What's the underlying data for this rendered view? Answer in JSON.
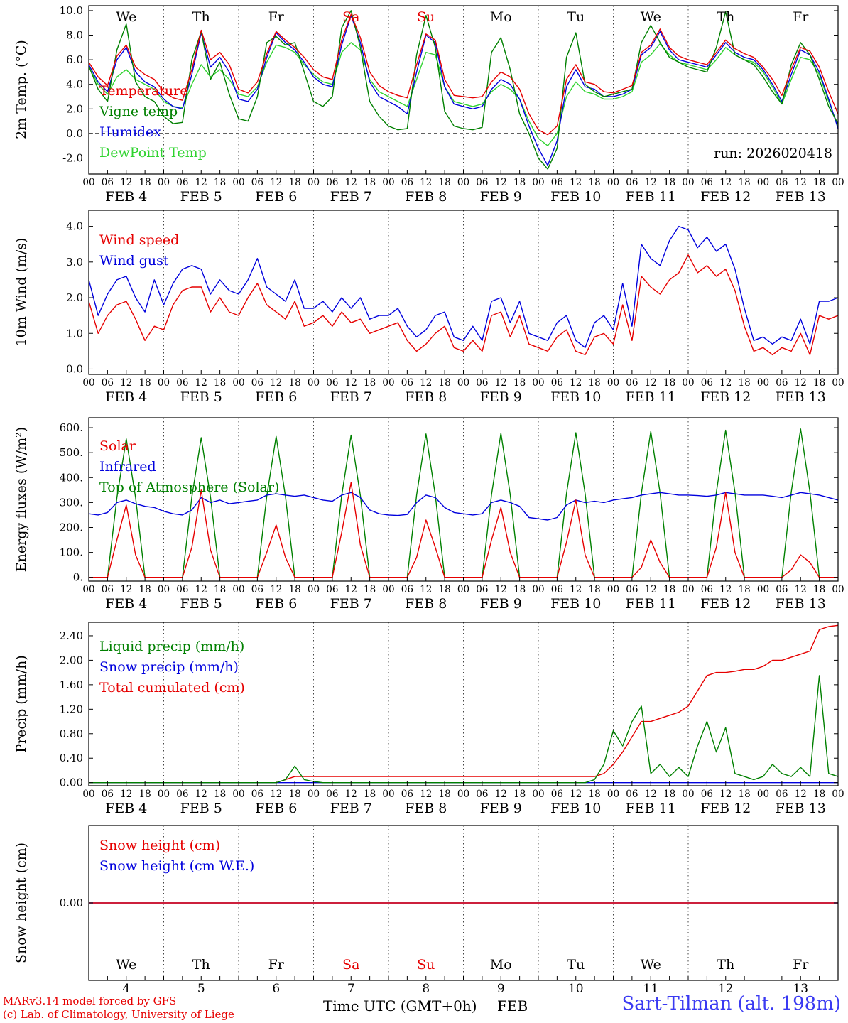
{
  "meta": {
    "run_label": "run: 2026020418"
  },
  "colors": {
    "red": "#e60000",
    "dark_green": "#008000",
    "blue": "#0000dd",
    "light_green": "#2fd32f",
    "weekend_red": "#e60000",
    "station_blue": "#3a3af2",
    "grid": "#444444",
    "axis": "#000000"
  },
  "footer": {
    "credit1": "MARv3.14 model forced by GFS",
    "credit2": "(c) Lab. of Climatology, University of Liege",
    "xlabel": "Time UTC (GMT+0h)",
    "month": "FEB",
    "station": "Sart-Tilman (alt. 198m)"
  },
  "days": {
    "names": [
      "We",
      "Th",
      "Fr",
      "Sa",
      "Su",
      "Mo",
      "Tu",
      "We",
      "Th",
      "Fr"
    ],
    "numbers": [
      "4",
      "5",
      "6",
      "7",
      "8",
      "9",
      "10",
      "11",
      "12",
      "13"
    ],
    "weekend": [
      0,
      0,
      0,
      1,
      1,
      0,
      0,
      0,
      0,
      0
    ]
  },
  "x_axis": {
    "start_hour": 0,
    "end_hour": 240,
    "hour_tick_step": 6,
    "hour_labels": [
      "00",
      "06",
      "12",
      "18"
    ],
    "date_labels": [
      "FEB 4",
      "FEB 5",
      "FEB 6",
      "FEB 7",
      "FEB 8",
      "FEB 9",
      "FEB 10",
      "FEB 11",
      "FEB 12",
      "FEB 13"
    ]
  },
  "chart_data": [
    {
      "id": "temperature",
      "type": "line",
      "ylabel": "2m Temp. (°C)",
      "ylim": [
        -3.3,
        10.4
      ],
      "ytick_values": [
        -2,
        0,
        2,
        4,
        6,
        8,
        10
      ],
      "ytick_labels": [
        "-2.0",
        "0.0",
        "2.0",
        "4.0",
        "6.0",
        "8.0",
        "10.0"
      ],
      "zero_line_dashed": true,
      "step_hours": 3,
      "series": [
        {
          "name": "Temperature",
          "color": "#e60000",
          "values": [
            5.8,
            4.6,
            3.9,
            6.3,
            7.2,
            5.4,
            4.8,
            4.4,
            3.4,
            2.9,
            2.7,
            5.2,
            8.4,
            6.0,
            6.6,
            5.6,
            3.6,
            3.3,
            4.2,
            6.5,
            8.3,
            7.6,
            7.0,
            6.2,
            5.2,
            4.6,
            4.4,
            7.6,
            9.7,
            7.8,
            5.0,
            3.9,
            3.4,
            3.1,
            2.9,
            5.6,
            8.1,
            7.6,
            4.4,
            3.1,
            3.0,
            2.9,
            3.0,
            4.2,
            5.0,
            4.6,
            3.6,
            1.6,
            0.3,
            -0.1,
            0.6,
            4.4,
            5.6,
            4.2,
            4.0,
            3.4,
            3.3,
            3.6,
            3.9,
            6.6,
            7.2,
            8.5,
            7.0,
            6.3,
            6.0,
            5.8,
            5.6,
            6.6,
            7.6,
            6.9,
            6.5,
            6.2,
            5.4,
            4.4,
            3.1,
            5.2,
            7.0,
            6.7,
            5.4,
            3.4,
            1.6
          ]
        },
        {
          "name": "Vigne temp",
          "color": "#008000",
          "values": [
            5.5,
            3.6,
            2.6,
            6.8,
            8.9,
            4.2,
            3.0,
            2.6,
            1.4,
            0.8,
            0.9,
            6.0,
            8.3,
            4.4,
            5.8,
            3.2,
            1.2,
            1.0,
            3.0,
            7.4,
            7.9,
            7.2,
            7.4,
            5.0,
            2.6,
            2.2,
            3.0,
            8.6,
            10.0,
            7.0,
            2.6,
            1.4,
            0.6,
            0.3,
            0.4,
            6.4,
            9.6,
            7.0,
            1.8,
            0.6,
            0.4,
            0.3,
            0.5,
            6.6,
            7.8,
            5.2,
            1.6,
            0.0,
            -2.0,
            -2.9,
            -1.2,
            6.2,
            8.2,
            4.0,
            3.4,
            3.0,
            3.2,
            3.4,
            3.6,
            7.4,
            8.8,
            7.4,
            6.2,
            5.8,
            5.4,
            5.2,
            5.0,
            7.0,
            9.9,
            6.4,
            6.0,
            5.6,
            4.6,
            3.4,
            2.4,
            5.6,
            7.4,
            6.4,
            4.4,
            2.2,
            0.8
          ]
        },
        {
          "name": "Humidex",
          "color": "#0000dd",
          "values": [
            5.6,
            4.2,
            3.4,
            6.0,
            7.0,
            5.0,
            4.2,
            3.8,
            2.8,
            2.2,
            2.0,
            4.8,
            8.2,
            5.4,
            6.2,
            5.0,
            2.8,
            2.6,
            3.6,
            6.2,
            8.2,
            7.4,
            6.8,
            5.8,
            4.6,
            4.0,
            3.8,
            7.2,
            9.6,
            7.4,
            4.2,
            3.0,
            2.6,
            2.2,
            1.6,
            5.0,
            8.0,
            7.4,
            3.8,
            2.4,
            2.2,
            2.0,
            2.2,
            3.6,
            4.4,
            4.0,
            2.8,
            0.6,
            -1.2,
            -2.6,
            -0.6,
            3.8,
            5.2,
            3.8,
            3.6,
            3.0,
            3.0,
            3.2,
            3.6,
            6.4,
            7.0,
            8.3,
            6.8,
            6.0,
            5.8,
            5.6,
            5.4,
            6.4,
            7.4,
            6.6,
            6.2,
            6.0,
            5.2,
            4.0,
            2.6,
            4.8,
            6.8,
            6.4,
            5.0,
            2.8,
            0.4
          ]
        },
        {
          "name": "DewPoint Temp",
          "color": "#2fd32f",
          "values": [
            5.4,
            4.0,
            3.2,
            4.6,
            5.2,
            4.4,
            4.0,
            3.6,
            2.6,
            2.2,
            2.1,
            4.0,
            5.6,
            4.6,
            5.2,
            4.4,
            3.2,
            3.0,
            3.8,
            5.8,
            7.2,
            7.0,
            6.6,
            5.6,
            4.8,
            4.2,
            4.0,
            6.6,
            7.4,
            6.8,
            4.4,
            3.4,
            3.0,
            2.6,
            2.2,
            4.4,
            6.6,
            6.4,
            3.8,
            2.6,
            2.4,
            2.2,
            2.4,
            3.4,
            4.0,
            3.6,
            2.8,
            1.0,
            -0.4,
            -1.0,
            0.0,
            3.0,
            4.2,
            3.4,
            3.2,
            2.8,
            2.8,
            3.0,
            3.4,
            5.8,
            6.4,
            7.3,
            6.4,
            5.8,
            5.6,
            5.4,
            5.2,
            6.0,
            7.0,
            6.4,
            6.0,
            5.8,
            5.0,
            3.8,
            2.4,
            4.4,
            6.2,
            6.0,
            4.8,
            2.6,
            0.6
          ]
        }
      ]
    },
    {
      "id": "wind",
      "type": "line",
      "ylabel": "10m Wind (m/s)",
      "ylim": [
        -0.15,
        4.45
      ],
      "ytick_values": [
        0,
        1,
        2,
        3,
        4
      ],
      "ytick_labels": [
        "0.0",
        "1.0",
        "2.0",
        "3.0",
        "4.0"
      ],
      "step_hours": 3,
      "series": [
        {
          "name": "Wind speed",
          "color": "#e60000",
          "values": [
            1.9,
            1.0,
            1.5,
            1.8,
            1.9,
            1.4,
            0.8,
            1.2,
            1.1,
            1.8,
            2.2,
            2.3,
            2.3,
            1.6,
            2.0,
            1.6,
            1.5,
            2.0,
            2.4,
            1.8,
            1.6,
            1.4,
            1.9,
            1.2,
            1.3,
            1.5,
            1.2,
            1.6,
            1.3,
            1.4,
            1.0,
            1.1,
            1.2,
            1.3,
            0.8,
            0.5,
            0.7,
            1.0,
            1.2,
            0.6,
            0.5,
            0.8,
            0.5,
            1.5,
            1.6,
            0.9,
            1.5,
            0.7,
            0.6,
            0.5,
            0.9,
            1.1,
            0.5,
            0.4,
            0.9,
            1.0,
            0.7,
            1.8,
            0.8,
            2.6,
            2.3,
            2.1,
            2.5,
            2.7,
            3.2,
            2.7,
            2.9,
            2.6,
            2.8,
            2.2,
            1.2,
            0.5,
            0.6,
            0.4,
            0.6,
            0.5,
            1.0,
            0.4,
            1.5,
            1.4,
            1.5
          ]
        },
        {
          "name": "Wind gust",
          "color": "#0000dd",
          "values": [
            2.5,
            1.5,
            2.1,
            2.5,
            2.6,
            2.0,
            1.6,
            2.5,
            1.8,
            2.4,
            2.8,
            2.9,
            2.8,
            2.1,
            2.5,
            2.2,
            2.1,
            2.5,
            3.1,
            2.3,
            2.1,
            1.9,
            2.5,
            1.7,
            1.7,
            1.9,
            1.6,
            2.0,
            1.7,
            2.0,
            1.4,
            1.5,
            1.5,
            1.7,
            1.2,
            0.9,
            1.1,
            1.5,
            1.6,
            0.9,
            0.8,
            1.2,
            0.8,
            1.9,
            2.0,
            1.3,
            1.9,
            1.0,
            0.9,
            0.8,
            1.3,
            1.5,
            0.8,
            0.6,
            1.3,
            1.5,
            1.1,
            2.4,
            1.2,
            3.5,
            3.1,
            2.9,
            3.6,
            4.0,
            3.9,
            3.4,
            3.7,
            3.3,
            3.5,
            2.8,
            1.7,
            0.8,
            0.9,
            0.7,
            0.9,
            0.8,
            1.4,
            0.7,
            1.9,
            1.9,
            2.0
          ]
        }
      ]
    },
    {
      "id": "energy",
      "type": "line",
      "ylabel": "Energy fluxes (W/m²)",
      "ylim": [
        -15,
        640
      ],
      "ytick_values": [
        0,
        100,
        200,
        300,
        400,
        500,
        600
      ],
      "ytick_labels": [
        "0.",
        "100.",
        "200.",
        "300.",
        "400.",
        "500.",
        "600."
      ],
      "step_hours": 3,
      "series": [
        {
          "name": "Solar",
          "color": "#e60000",
          "values": [
            0,
            0,
            0,
            150,
            290,
            90,
            0,
            0,
            0,
            0,
            0,
            120,
            350,
            110,
            0,
            0,
            0,
            0,
            0,
            100,
            210,
            80,
            0,
            0,
            0,
            0,
            0,
            180,
            380,
            130,
            0,
            0,
            0,
            0,
            0,
            80,
            230,
            120,
            0,
            0,
            0,
            0,
            0,
            150,
            280,
            100,
            0,
            0,
            0,
            0,
            0,
            140,
            310,
            90,
            0,
            0,
            0,
            0,
            0,
            40,
            150,
            60,
            0,
            0,
            0,
            0,
            0,
            120,
            340,
            100,
            0,
            0,
            0,
            0,
            0,
            30,
            90,
            60,
            0,
            0,
            0
          ]
        },
        {
          "name": "Infrared",
          "color": "#0000dd",
          "values": [
            255,
            250,
            260,
            300,
            310,
            295,
            285,
            280,
            265,
            255,
            250,
            270,
            320,
            300,
            310,
            295,
            300,
            305,
            310,
            330,
            335,
            330,
            325,
            330,
            320,
            310,
            305,
            330,
            340,
            320,
            270,
            255,
            250,
            248,
            252,
            300,
            330,
            320,
            280,
            260,
            255,
            250,
            255,
            300,
            310,
            300,
            285,
            240,
            235,
            230,
            240,
            290,
            310,
            300,
            305,
            300,
            310,
            315,
            320,
            330,
            335,
            340,
            335,
            330,
            330,
            328,
            325,
            330,
            340,
            335,
            330,
            330,
            330,
            325,
            320,
            330,
            340,
            335,
            330,
            320,
            310
          ]
        },
        {
          "name": "Top of Atmosphere (Solar)",
          "color": "#008000",
          "values": [
            0,
            0,
            0,
            320,
            555,
            320,
            0,
            0,
            0,
            0,
            0,
            322,
            560,
            322,
            0,
            0,
            0,
            0,
            0,
            325,
            565,
            325,
            0,
            0,
            0,
            0,
            0,
            328,
            570,
            328,
            0,
            0,
            0,
            0,
            0,
            330,
            575,
            330,
            0,
            0,
            0,
            0,
            0,
            332,
            578,
            332,
            0,
            0,
            0,
            0,
            0,
            335,
            580,
            335,
            0,
            0,
            0,
            0,
            0,
            338,
            585,
            338,
            0,
            0,
            0,
            0,
            0,
            340,
            590,
            340,
            0,
            0,
            0,
            0,
            0,
            342,
            595,
            342,
            0,
            0,
            0
          ]
        }
      ]
    },
    {
      "id": "precip",
      "type": "line",
      "ylabel": "Precip (mm/h)",
      "ylim": [
        -0.05,
        2.62
      ],
      "ytick_values": [
        0.0,
        0.4,
        0.8,
        1.2,
        1.6,
        2.0,
        2.4
      ],
      "ytick_labels": [
        "0.00",
        "0.40",
        "0.80",
        "1.20",
        "1.60",
        "2.00",
        "2.40"
      ],
      "step_hours": 3,
      "series": [
        {
          "name": "Liquid precip (mm/h)",
          "color": "#008000",
          "values": [
            0,
            0,
            0,
            0,
            0,
            0,
            0,
            0,
            0,
            0,
            0,
            0,
            0,
            0,
            0,
            0,
            0,
            0,
            0,
            0,
            0,
            0.05,
            0.27,
            0.05,
            0.02,
            0,
            0,
            0,
            0,
            0,
            0,
            0,
            0,
            0,
            0,
            0,
            0,
            0,
            0,
            0,
            0,
            0,
            0,
            0,
            0,
            0,
            0,
            0,
            0,
            0,
            0,
            0,
            0,
            0,
            0.05,
            0.3,
            0.85,
            0.6,
            1.0,
            1.25,
            0.15,
            0.3,
            0.1,
            0.25,
            0.1,
            0.6,
            1.0,
            0.5,
            0.9,
            0.15,
            0.1,
            0.05,
            0.1,
            0.3,
            0.15,
            0.1,
            0.25,
            0.1,
            1.75,
            0.15,
            0.1
          ]
        },
        {
          "name": "Snow precip (mm/h)",
          "color": "#0000dd",
          "constant": 0
        },
        {
          "name": "Total cumulated (cm)",
          "color": "#e60000",
          "values": [
            0,
            0,
            0,
            0,
            0,
            0,
            0,
            0,
            0,
            0,
            0,
            0,
            0,
            0,
            0,
            0,
            0,
            0,
            0,
            0,
            0,
            0.05,
            0.1,
            0.1,
            0.1,
            0.1,
            0.1,
            0.1,
            0.1,
            0.1,
            0.1,
            0.1,
            0.1,
            0.1,
            0.1,
            0.1,
            0.1,
            0.1,
            0.1,
            0.1,
            0.1,
            0.1,
            0.1,
            0.1,
            0.1,
            0.1,
            0.1,
            0.1,
            0.1,
            0.1,
            0.1,
            0.1,
            0.1,
            0.1,
            0.1,
            0.15,
            0.3,
            0.5,
            0.75,
            1.0,
            1.0,
            1.05,
            1.1,
            1.15,
            1.25,
            1.5,
            1.75,
            1.8,
            1.8,
            1.82,
            1.85,
            1.85,
            1.9,
            2.0,
            2.0,
            2.05,
            2.1,
            2.15,
            2.5,
            2.55,
            2.57
          ]
        }
      ]
    },
    {
      "id": "snow",
      "type": "line",
      "ylabel": "Snow height (cm)",
      "ylim": [
        -1,
        1
      ],
      "ytick_values": [
        0
      ],
      "ytick_labels": [
        "0.00"
      ],
      "step_hours": 3,
      "series": [
        {
          "name": "Snow height (cm)",
          "color": "#e60000",
          "constant": 0
        },
        {
          "name": "Snow height (cm W.E.)",
          "color": "#0000dd",
          "constant": 0
        }
      ]
    }
  ]
}
